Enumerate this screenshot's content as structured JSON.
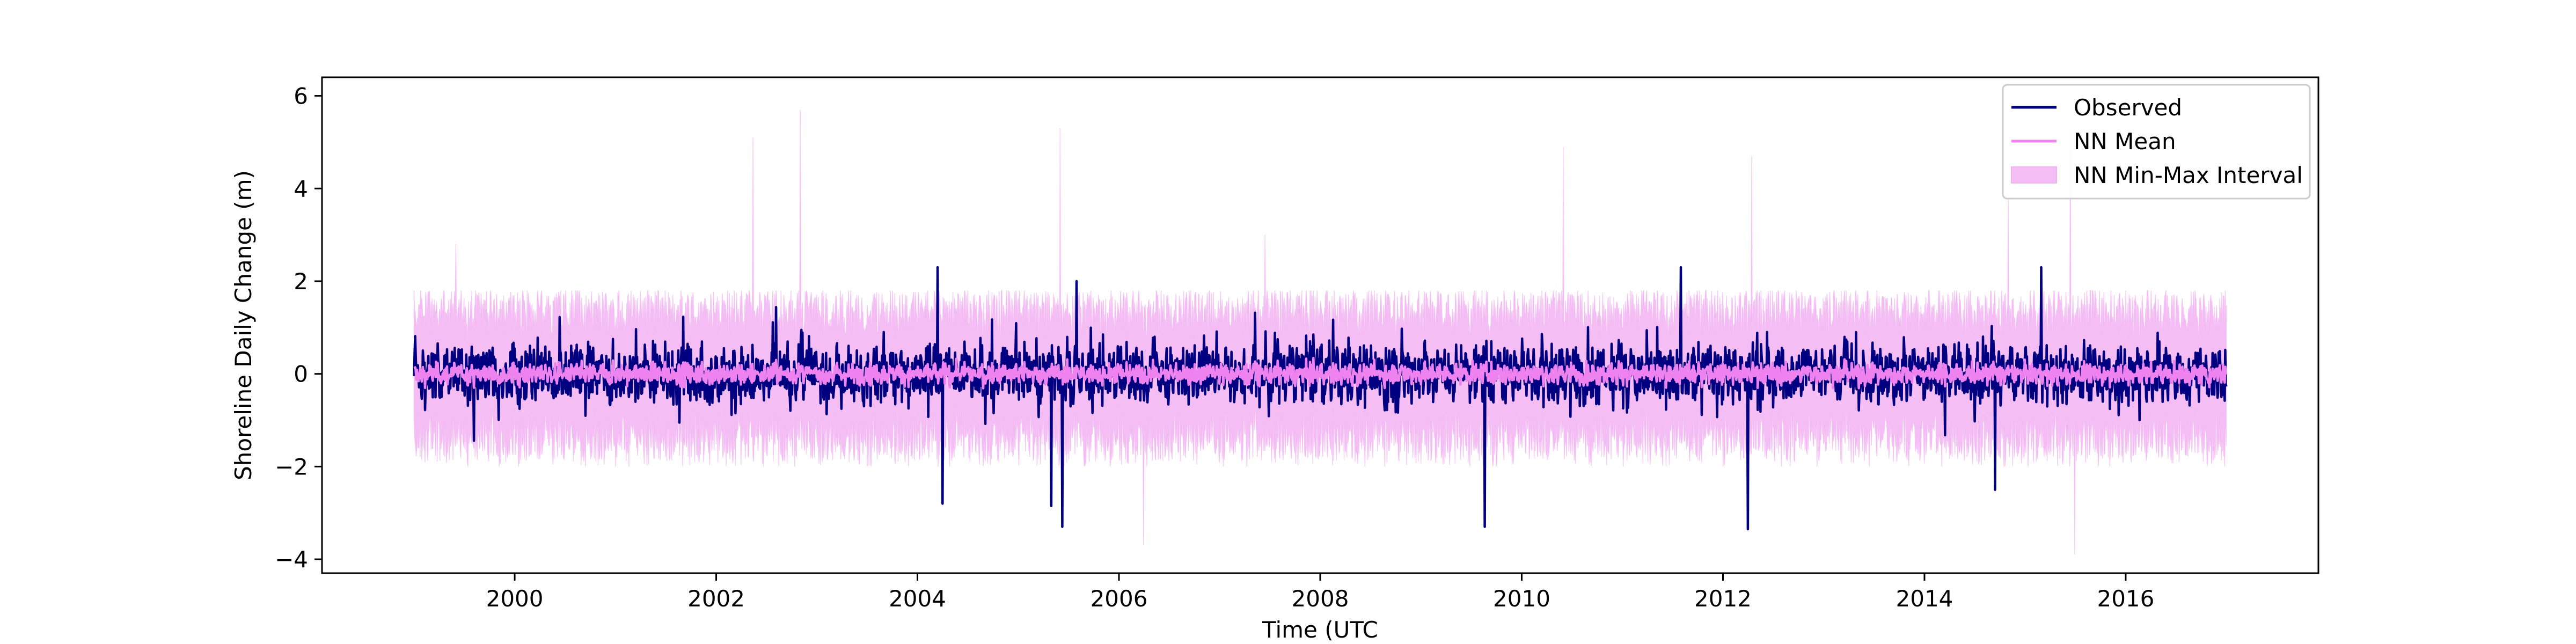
{
  "chart_data": {
    "type": "line",
    "title": "",
    "xlabel": "Time (UTC",
    "ylabel": "Shoreline Daily Change (m)",
    "x_range": [
      "1999-01-01",
      "2016-12-31"
    ],
    "xlim": [
      "1998-02-01",
      "2017-11-30"
    ],
    "ylim": [
      -4.3,
      6.4
    ],
    "x_ticks": [
      "2000",
      "2002",
      "2004",
      "2006",
      "2008",
      "2010",
      "2012",
      "2014",
      "2016"
    ],
    "y_ticks": [
      "−4",
      "−2",
      "0",
      "2",
      "4",
      "6"
    ],
    "grid": false,
    "legend_position": "top-right",
    "series": [
      {
        "name": "Observed",
        "kind": "line",
        "color": "#000080",
        "typical_range": [
          -1.5,
          1.5
        ],
        "extremes": [
          {
            "x": "2004-03-15",
            "y": 2.3
          },
          {
            "x": "2004-04-01",
            "y": -2.8
          },
          {
            "x": "2005-05-01",
            "y": -2.85
          },
          {
            "x": "2005-06-10",
            "y": -3.3
          },
          {
            "x": "2005-08-01",
            "y": 2.0
          },
          {
            "x": "2009-08-20",
            "y": -3.3
          },
          {
            "x": "2011-08-01",
            "y": 2.3
          },
          {
            "x": "2012-04-01",
            "y": -3.35
          },
          {
            "x": "2014-09-15",
            "y": -2.5
          },
          {
            "x": "2015-03-01",
            "y": 2.3
          }
        ]
      },
      {
        "name": "NN Mean",
        "kind": "line",
        "color": "#ee82ee",
        "typical_range": [
          -0.5,
          0.5
        ]
      },
      {
        "name": "NN Min-Max Interval",
        "kind": "band",
        "color": "#f2b3f2",
        "typical_range": [
          -2.0,
          1.8
        ],
        "extremes": [
          {
            "x": "1999-06-01",
            "y": 2.8
          },
          {
            "x": "2002-05-15",
            "y": 5.1
          },
          {
            "x": "2002-11-01",
            "y": 5.7
          },
          {
            "x": "2005-06-01",
            "y": 5.3
          },
          {
            "x": "2006-04-01",
            "y": -3.7
          },
          {
            "x": "2007-06-15",
            "y": 3.0
          },
          {
            "x": "2010-06-01",
            "y": 4.9
          },
          {
            "x": "2012-04-15",
            "y": 4.7
          },
          {
            "x": "2014-11-01",
            "y": 3.8
          },
          {
            "x": "2015-06-15",
            "y": 5.3
          },
          {
            "x": "2015-07-01",
            "y": -3.9
          }
        ]
      }
    ]
  }
}
